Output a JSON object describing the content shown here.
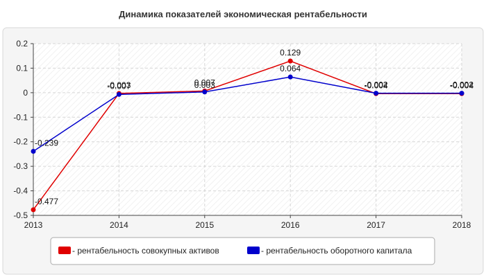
{
  "chart_data": {
    "type": "line",
    "title": "Динамика показателей экономическая рентабельности",
    "xlabel": "",
    "ylabel": "",
    "x": [
      "2013",
      "2014",
      "2015",
      "2016",
      "2017",
      "2018"
    ],
    "y_ticks": [
      "0.2",
      "0.1",
      "0",
      "-0.1",
      "-0.2",
      "-0.3",
      "-0.4",
      "-0.5"
    ],
    "ylim": [
      -0.5,
      0.2
    ],
    "grid": true,
    "legend_position": "bottom",
    "series": [
      {
        "name": "- рентабельность совокупных активов",
        "color": "#e00000",
        "values": [
          -0.477,
          -0.003,
          0.007,
          0.129,
          -0.004,
          -0.004
        ],
        "labels": [
          "-0.477",
          "-0.003",
          "0.007",
          "0.129",
          "-0.004",
          "-0.004"
        ]
      },
      {
        "name": "- рентабельность оборотного капитала",
        "color": "#0000cc",
        "values": [
          -0.239,
          -0.007,
          0.003,
          0.064,
          -0.002,
          -0.002
        ],
        "labels": [
          "-0.239",
          "-0.007",
          "0.003",
          "0.064",
          "-0.002",
          "-0.002"
        ]
      }
    ]
  }
}
